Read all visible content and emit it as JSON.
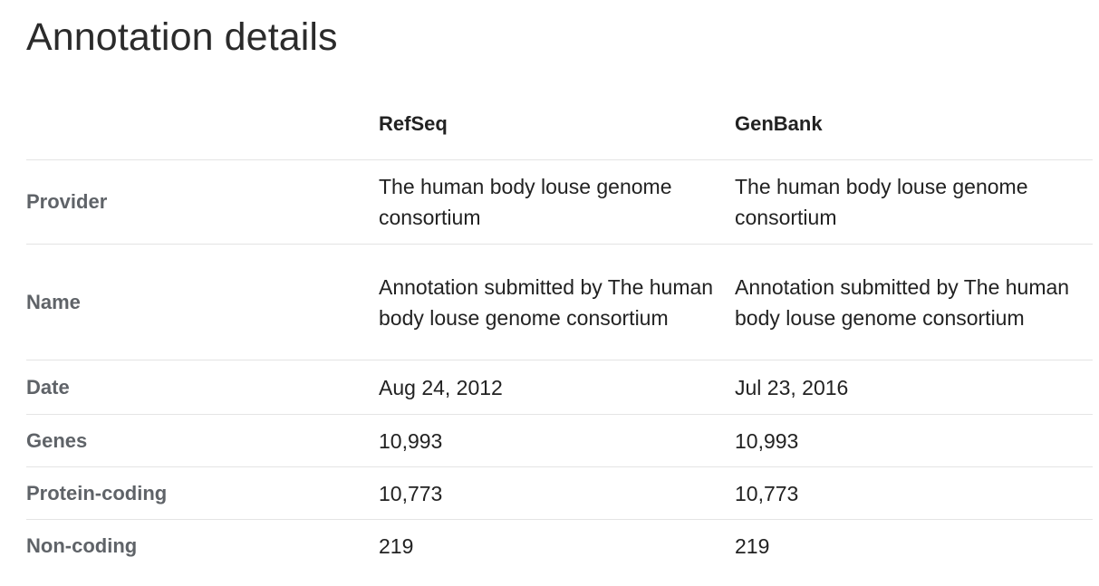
{
  "page": {
    "title": "Annotation details"
  },
  "table": {
    "headers": {
      "label": "",
      "refseq": "RefSeq",
      "genbank": "GenBank"
    },
    "rows": [
      {
        "label": "Provider",
        "refseq": "The human body louse genome consortium",
        "genbank": "The human body louse genome consortium"
      },
      {
        "label": "Name",
        "refseq": "Annotation submitted by The human body louse genome consortium",
        "genbank": "Annotation submitted by The human body louse genome consortium"
      },
      {
        "label": "Date",
        "refseq": "Aug 24, 2012",
        "genbank": "Jul 23, 2016"
      },
      {
        "label": "Genes",
        "refseq": "10,993",
        "genbank": "10,993"
      },
      {
        "label": "Protein-coding",
        "refseq": "10,773",
        "genbank": "10,773"
      },
      {
        "label": "Non-coding",
        "refseq": "219",
        "genbank": "219"
      }
    ]
  },
  "colors": {
    "text": "#222222",
    "label_text": "#5f6368",
    "divider": "#e4e4e4"
  }
}
